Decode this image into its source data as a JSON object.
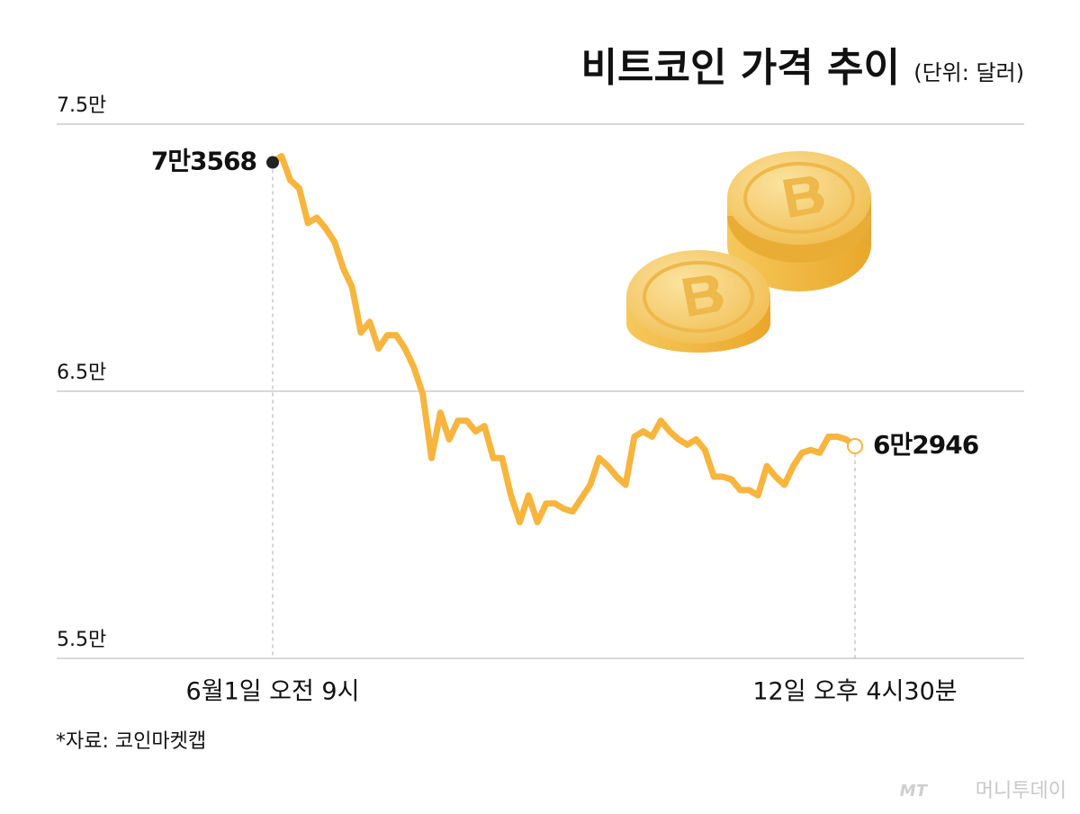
{
  "chart_data": {
    "type": "line",
    "title": "비트코인 가격 추이",
    "unit": "(단위: 달러)",
    "source": "*자료: 코인마켓캡",
    "credit": "머니투데이",
    "categories": [
      "6월1일 오전 9시",
      null,
      null,
      null,
      null,
      null,
      null,
      null,
      null,
      null,
      null,
      null,
      null,
      null,
      null,
      null,
      null,
      null,
      null,
      null,
      null,
      null,
      null,
      null,
      null,
      null,
      null,
      null,
      null,
      null,
      null,
      null,
      null,
      null,
      null,
      null,
      null,
      null,
      null,
      null,
      null,
      null,
      null,
      null,
      null,
      null,
      null,
      null,
      null,
      null,
      null,
      null,
      null,
      null,
      null,
      null,
      null,
      null,
      null,
      null,
      null,
      null,
      null,
      null,
      null,
      null,
      "12일 오후 4시30분"
    ],
    "values": [
      73568,
      73800,
      72900,
      72600,
      71300,
      71500,
      71100,
      70600,
      69600,
      68900,
      67200,
      67600,
      66600,
      67100,
      67100,
      66600,
      65900,
      64900,
      62500,
      64200,
      63200,
      63900,
      63900,
      63500,
      63700,
      62500,
      62500,
      61100,
      60100,
      61100,
      60100,
      60800,
      60800,
      60600,
      60500,
      61000,
      61500,
      62500,
      62200,
      61800,
      61500,
      63300,
      63500,
      63300,
      63900,
      63500,
      63200,
      63000,
      63200,
      62800,
      61800,
      61800,
      61700,
      61300,
      61300,
      61100,
      62200,
      61800,
      61500,
      62200,
      62700,
      62800,
      62700,
      63300,
      63300,
      63200,
      62946
    ],
    "value_labels": [
      "7만3568",
      null,
      null,
      null,
      null,
      null,
      null,
      null,
      null,
      null,
      null,
      null,
      null,
      null,
      null,
      null,
      null,
      null,
      null,
      null,
      null,
      null,
      null,
      null,
      null,
      null,
      null,
      null,
      null,
      null,
      null,
      null,
      null,
      null,
      null,
      null,
      null,
      null,
      null,
      null,
      null,
      null,
      null,
      null,
      null,
      null,
      null,
      null,
      null,
      null,
      null,
      null,
      null,
      null,
      null,
      null,
      null,
      null,
      null,
      null,
      null,
      null,
      null,
      null,
      null,
      null,
      "6만2946"
    ],
    "color": "#f7b53e",
    "ylim": [
      55000,
      75000
    ],
    "yticks": [
      {
        "value": 55000,
        "label": "5.5만"
      },
      {
        "value": 65000,
        "label": "6.5만"
      },
      {
        "value": 75000,
        "label": "7.5만"
      }
    ],
    "grid": true
  }
}
